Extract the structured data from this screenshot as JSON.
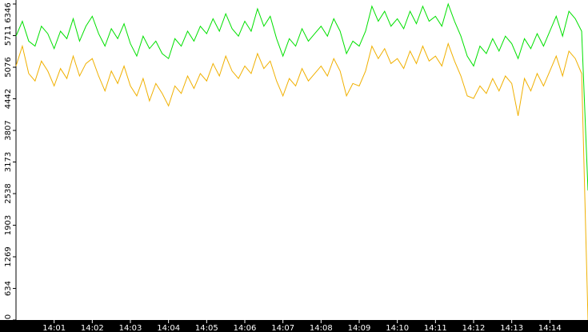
{
  "chart_data": {
    "type": "line",
    "categories": [
      null,
      null,
      null,
      null,
      null,
      null,
      "14:01",
      null,
      null,
      null,
      null,
      null,
      "14:02",
      null,
      null,
      null,
      null,
      null,
      "14:03",
      null,
      null,
      null,
      null,
      null,
      "14:04",
      null,
      null,
      null,
      null,
      null,
      "14:05",
      null,
      null,
      null,
      null,
      null,
      "14:06",
      null,
      null,
      null,
      null,
      null,
      "14:07",
      null,
      null,
      null,
      null,
      null,
      "14:08",
      null,
      null,
      null,
      null,
      null,
      "14:09",
      null,
      null,
      null,
      null,
      null,
      "14:10",
      null,
      null,
      null,
      null,
      null,
      "14:11",
      null,
      null,
      null,
      null,
      null,
      "14:12",
      null,
      null,
      null,
      null,
      null,
      "14:13",
      null,
      null,
      null,
      null,
      null,
      "14:14",
      null,
      null,
      null,
      null,
      null,
      null
    ],
    "series": [
      {
        "color": "#00e000",
        "values": [
          5700,
          6000,
          5600,
          5500,
          5900,
          5750,
          5450,
          5800,
          5650,
          6050,
          5600,
          5900,
          6100,
          5750,
          5500,
          5850,
          5650,
          5950,
          5550,
          5300,
          5700,
          5450,
          5600,
          5350,
          5250,
          5650,
          5500,
          5800,
          5600,
          5900,
          5750,
          6050,
          5800,
          6150,
          5850,
          5700,
          6000,
          5800,
          6250,
          5900,
          6100,
          5650,
          5300,
          5650,
          5500,
          5850,
          5600,
          5750,
          5900,
          5700,
          6050,
          5800,
          5350,
          5600,
          5500,
          5800,
          6300,
          6000,
          6200,
          5900,
          6050,
          5850,
          6200,
          5950,
          6300,
          6000,
          6100,
          5900,
          6346,
          6000,
          5700,
          5300,
          5100,
          5500,
          5350,
          5650,
          5400,
          5700,
          5550,
          5250,
          5650,
          5450,
          5750,
          5500,
          5800,
          6100,
          5700,
          6200,
          6050,
          5800,
          2600
        ]
      },
      {
        "color": "#f0b000",
        "values": [
          5100,
          5500,
          4950,
          4800,
          5200,
          5000,
          4700,
          5050,
          4850,
          5300,
          4900,
          5150,
          5250,
          4900,
          4600,
          5000,
          4750,
          5100,
          4700,
          4500,
          4850,
          4400,
          4750,
          4550,
          4300,
          4700,
          4550,
          4900,
          4650,
          4950,
          4800,
          5150,
          4900,
          5300,
          5000,
          4850,
          5100,
          4950,
          5350,
          5050,
          5200,
          4800,
          4500,
          4850,
          4700,
          5050,
          4800,
          4950,
          5100,
          4900,
          5250,
          5000,
          4500,
          4750,
          4700,
          5000,
          5500,
          5250,
          5450,
          5150,
          5250,
          5050,
          5400,
          5150,
          5500,
          5200,
          5300,
          5100,
          5550,
          5200,
          4900,
          4500,
          4450,
          4700,
          4550,
          4850,
          4600,
          4900,
          4750,
          4100,
          4850,
          4600,
          4950,
          4700,
          5000,
          5300,
          4900,
          5400,
          5250,
          4950,
          0
        ]
      }
    ],
    "ylim": [
      0,
      6346
    ],
    "yticks": [
      0,
      634,
      1269,
      1903,
      2538,
      3173,
      3807,
      4442,
      5076,
      5711,
      6346
    ]
  }
}
